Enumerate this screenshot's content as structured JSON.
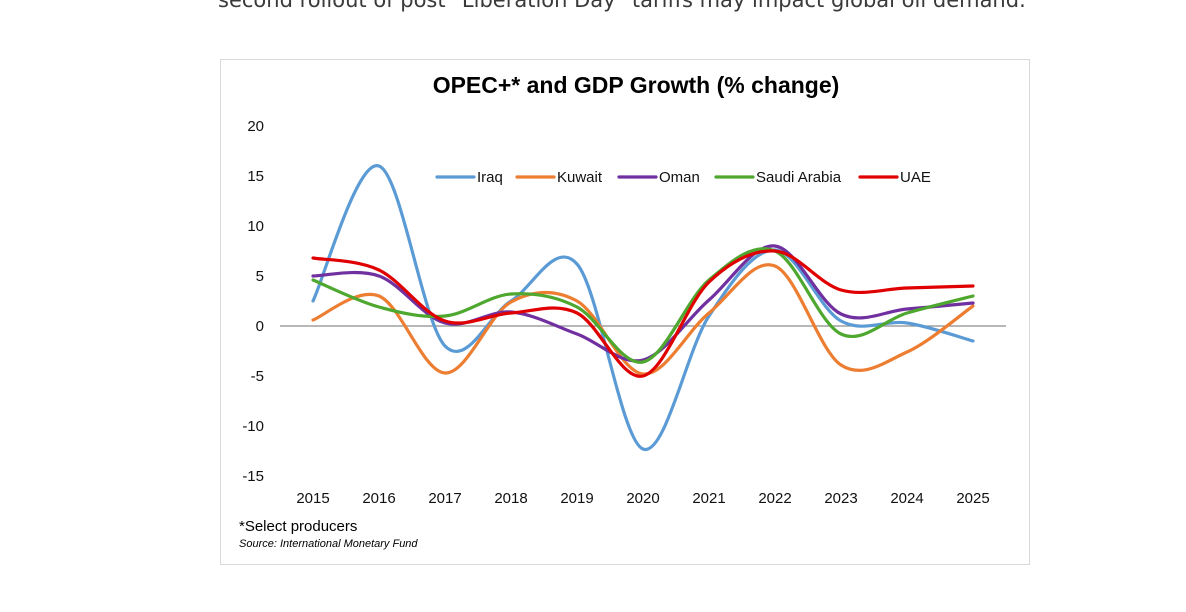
{
  "article": {
    "text": "second rollout of post \"Liberation Day\" tariffs may impact global oil demand."
  },
  "chart_data": {
    "type": "line",
    "title": "OPEC+* and GDP Growth (% change)",
    "xlabel": "",
    "ylabel": "",
    "x": [
      "2015",
      "2016",
      "2017",
      "2018",
      "2019",
      "2020",
      "2021",
      "2022",
      "2023",
      "2024",
      "2025"
    ],
    "ylim": [
      -15,
      20
    ],
    "yticks": [
      20,
      15,
      10,
      5,
      0,
      -5,
      -10,
      -15
    ],
    "legend_position": "top",
    "series": [
      {
        "name": "Iraq",
        "color": "#5b9bd5",
        "values": [
          2.5,
          16.0,
          -2.0,
          2.5,
          6.2,
          -12.3,
          1.0,
          7.6,
          0.5,
          0.3,
          -1.5
        ]
      },
      {
        "name": "Kuwait",
        "color": "#ed7d31",
        "values": [
          0.6,
          3.0,
          -4.7,
          2.4,
          2.5,
          -4.8,
          1.3,
          6.0,
          -3.9,
          -2.6,
          2.0
        ]
      },
      {
        "name": "Oman",
        "color": "#7030a0",
        "values": [
          5.0,
          5.0,
          0.3,
          1.4,
          -0.8,
          -3.4,
          2.6,
          8.0,
          1.2,
          1.7,
          2.3
        ]
      },
      {
        "name": "Saudi Arabia",
        "color": "#4ea72e",
        "values": [
          4.6,
          1.9,
          1.0,
          3.2,
          1.9,
          -3.6,
          4.6,
          7.5,
          -0.8,
          1.3,
          3.0
        ]
      },
      {
        "name": "UAE",
        "color": "#e00000",
        "values": [
          6.8,
          5.6,
          0.5,
          1.3,
          1.3,
          -5.0,
          4.4,
          7.5,
          3.6,
          3.8,
          4.0
        ]
      }
    ],
    "footnote": "*Select producers",
    "source": "Source: International Monetary Fund"
  }
}
